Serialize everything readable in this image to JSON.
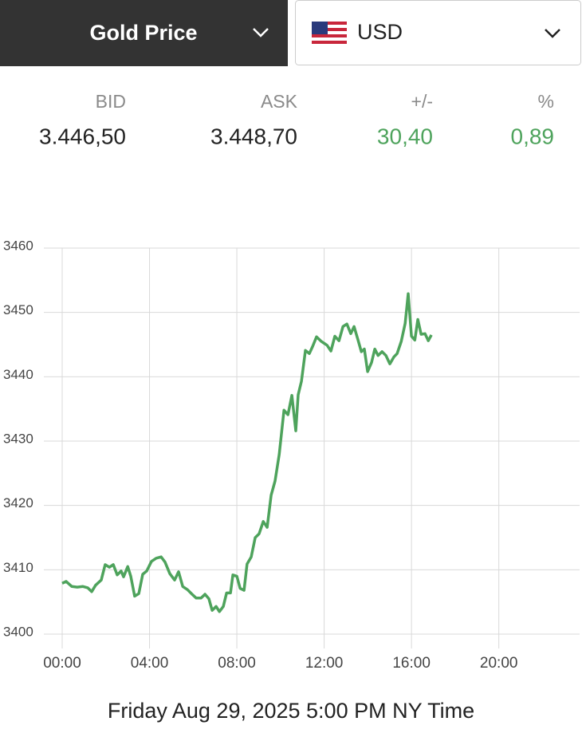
{
  "header": {
    "metal": "Gold Price",
    "currency": "USD"
  },
  "quote": {
    "labels": [
      "BID",
      "ASK",
      "+/-",
      "%"
    ],
    "values": [
      "3.446,50",
      "3.448,70",
      "30,40",
      "0,89"
    ]
  },
  "chart_data": {
    "type": "line",
    "caption": "Friday Aug 29, 2025 5:00 PM NY Time",
    "x": [
      0,
      0.18,
      0.44,
      0.69,
      0.95,
      1.17,
      1.35,
      1.53,
      1.79,
      1.97,
      2.16,
      2.34,
      2.52,
      2.7,
      2.81,
      3.0,
      3.14,
      3.32,
      3.51,
      3.69,
      3.87,
      4.09,
      4.31,
      4.53,
      4.71,
      4.93,
      5.15,
      5.33,
      5.52,
      5.74,
      5.95,
      6.14,
      6.36,
      6.54,
      6.72,
      6.87,
      7.05,
      7.2,
      7.38,
      7.53,
      7.71,
      7.82,
      8.0,
      8.15,
      8.33,
      8.47,
      8.66,
      8.84,
      9.02,
      9.21,
      9.39,
      9.57,
      9.75,
      9.94,
      10.16,
      10.34,
      10.52,
      10.7,
      10.81,
      10.96,
      11.14,
      11.32,
      11.47,
      11.65,
      11.87,
      12.13,
      12.31,
      12.49,
      12.68,
      12.86,
      13.04,
      13.22,
      13.37,
      13.55,
      13.7,
      13.84,
      13.99,
      14.17,
      14.32,
      14.47,
      14.65,
      14.83,
      15.01,
      15.2,
      15.34,
      15.53,
      15.71,
      15.85,
      16.0,
      16.15,
      16.29,
      16.44,
      16.62,
      16.77,
      16.91
    ],
    "values": [
      3407.9,
      3408.2,
      3407.4,
      3407.3,
      3407.4,
      3407.2,
      3406.6,
      3407.6,
      3408.4,
      3410.8,
      3410.4,
      3410.8,
      3409.2,
      3409.8,
      3408.9,
      3410.5,
      3409.0,
      3405.9,
      3406.3,
      3409.3,
      3409.8,
      3411.3,
      3411.8,
      3412.0,
      3411.2,
      3409.4,
      3408.4,
      3409.7,
      3407.4,
      3406.9,
      3406.2,
      3405.6,
      3405.6,
      3406.2,
      3405.5,
      3403.7,
      3404.3,
      3403.5,
      3404.3,
      3406.4,
      3406.4,
      3409.2,
      3409.0,
      3407.1,
      3406.8,
      3410.9,
      3412.0,
      3415.0,
      3415.6,
      3417.5,
      3416.6,
      3421.6,
      3423.8,
      3427.9,
      3434.8,
      3434.1,
      3437.1,
      3431.6,
      3437.2,
      3439.3,
      3444.1,
      3443.6,
      3444.7,
      3446.2,
      3445.5,
      3444.9,
      3444.0,
      3446.3,
      3445.6,
      3447.8,
      3448.2,
      3446.7,
      3447.8,
      3445.7,
      3443.9,
      3444.3,
      3440.8,
      3442.2,
      3444.3,
      3443.3,
      3443.9,
      3443.3,
      3442.0,
      3443.1,
      3443.6,
      3445.5,
      3448.3,
      3452.9,
      3446.3,
      3445.7,
      3448.9,
      3446.6,
      3446.7,
      3445.6,
      3446.5
    ],
    "color": "#4ea35c",
    "xlim": [
      -0.84,
      23.7
    ],
    "xticks": [
      {
        "value": 0,
        "label": "00:00"
      },
      {
        "value": 4,
        "label": "04:00"
      },
      {
        "value": 8,
        "label": "08:00"
      },
      {
        "value": 12,
        "label": "12:00"
      },
      {
        "value": 16,
        "label": "16:00"
      },
      {
        "value": 20,
        "label": "20:00"
      }
    ],
    "ylim": [
      3400,
      3460
    ],
    "yticks": [
      3400,
      3410,
      3420,
      3430,
      3440,
      3450,
      3460
    ],
    "grid": true
  }
}
